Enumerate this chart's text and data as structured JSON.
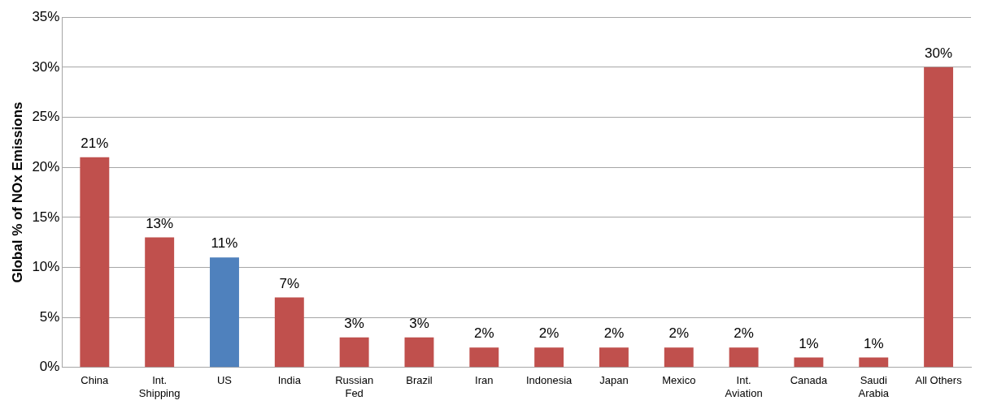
{
  "chart_data": {
    "type": "bar",
    "ylabel": "Global % of NOx Emissions",
    "categories": [
      "China",
      "Int. Shipping",
      "US",
      "India",
      "Russian Fed",
      "Brazil",
      "Iran",
      "Indonesia",
      "Japan",
      "Mexico",
      "Int. Aviation",
      "Canada",
      "Saudi Arabia",
      "All Others"
    ],
    "values": [
      21,
      13,
      11,
      7,
      3,
      3,
      2,
      2,
      2,
      2,
      2,
      1,
      1,
      30
    ],
    "colors": [
      "#c0504d",
      "#c0504d",
      "#4f81bd",
      "#c0504d",
      "#c0504d",
      "#c0504d",
      "#c0504d",
      "#c0504d",
      "#c0504d",
      "#c0504d",
      "#c0504d",
      "#c0504d",
      "#c0504d",
      "#c0504d"
    ],
    "value_labels": [
      "21%",
      "13%",
      "11%",
      "7%",
      "3%",
      "3%",
      "2%",
      "2%",
      "2%",
      "2%",
      "2%",
      "1%",
      "1%",
      "30%"
    ],
    "ylim": [
      0,
      35
    ],
    "yticks": [
      {
        "value": 0,
        "label": "0%"
      },
      {
        "value": 5,
        "label": "5%"
      },
      {
        "value": 10,
        "label": "10%"
      },
      {
        "value": 15,
        "label": "15%"
      },
      {
        "value": 20,
        "label": "20%"
      },
      {
        "value": 25,
        "label": "25%"
      },
      {
        "value": 30,
        "label": "30%"
      },
      {
        "value": 35,
        "label": "35%"
      }
    ],
    "grid": "y",
    "legend": false
  }
}
